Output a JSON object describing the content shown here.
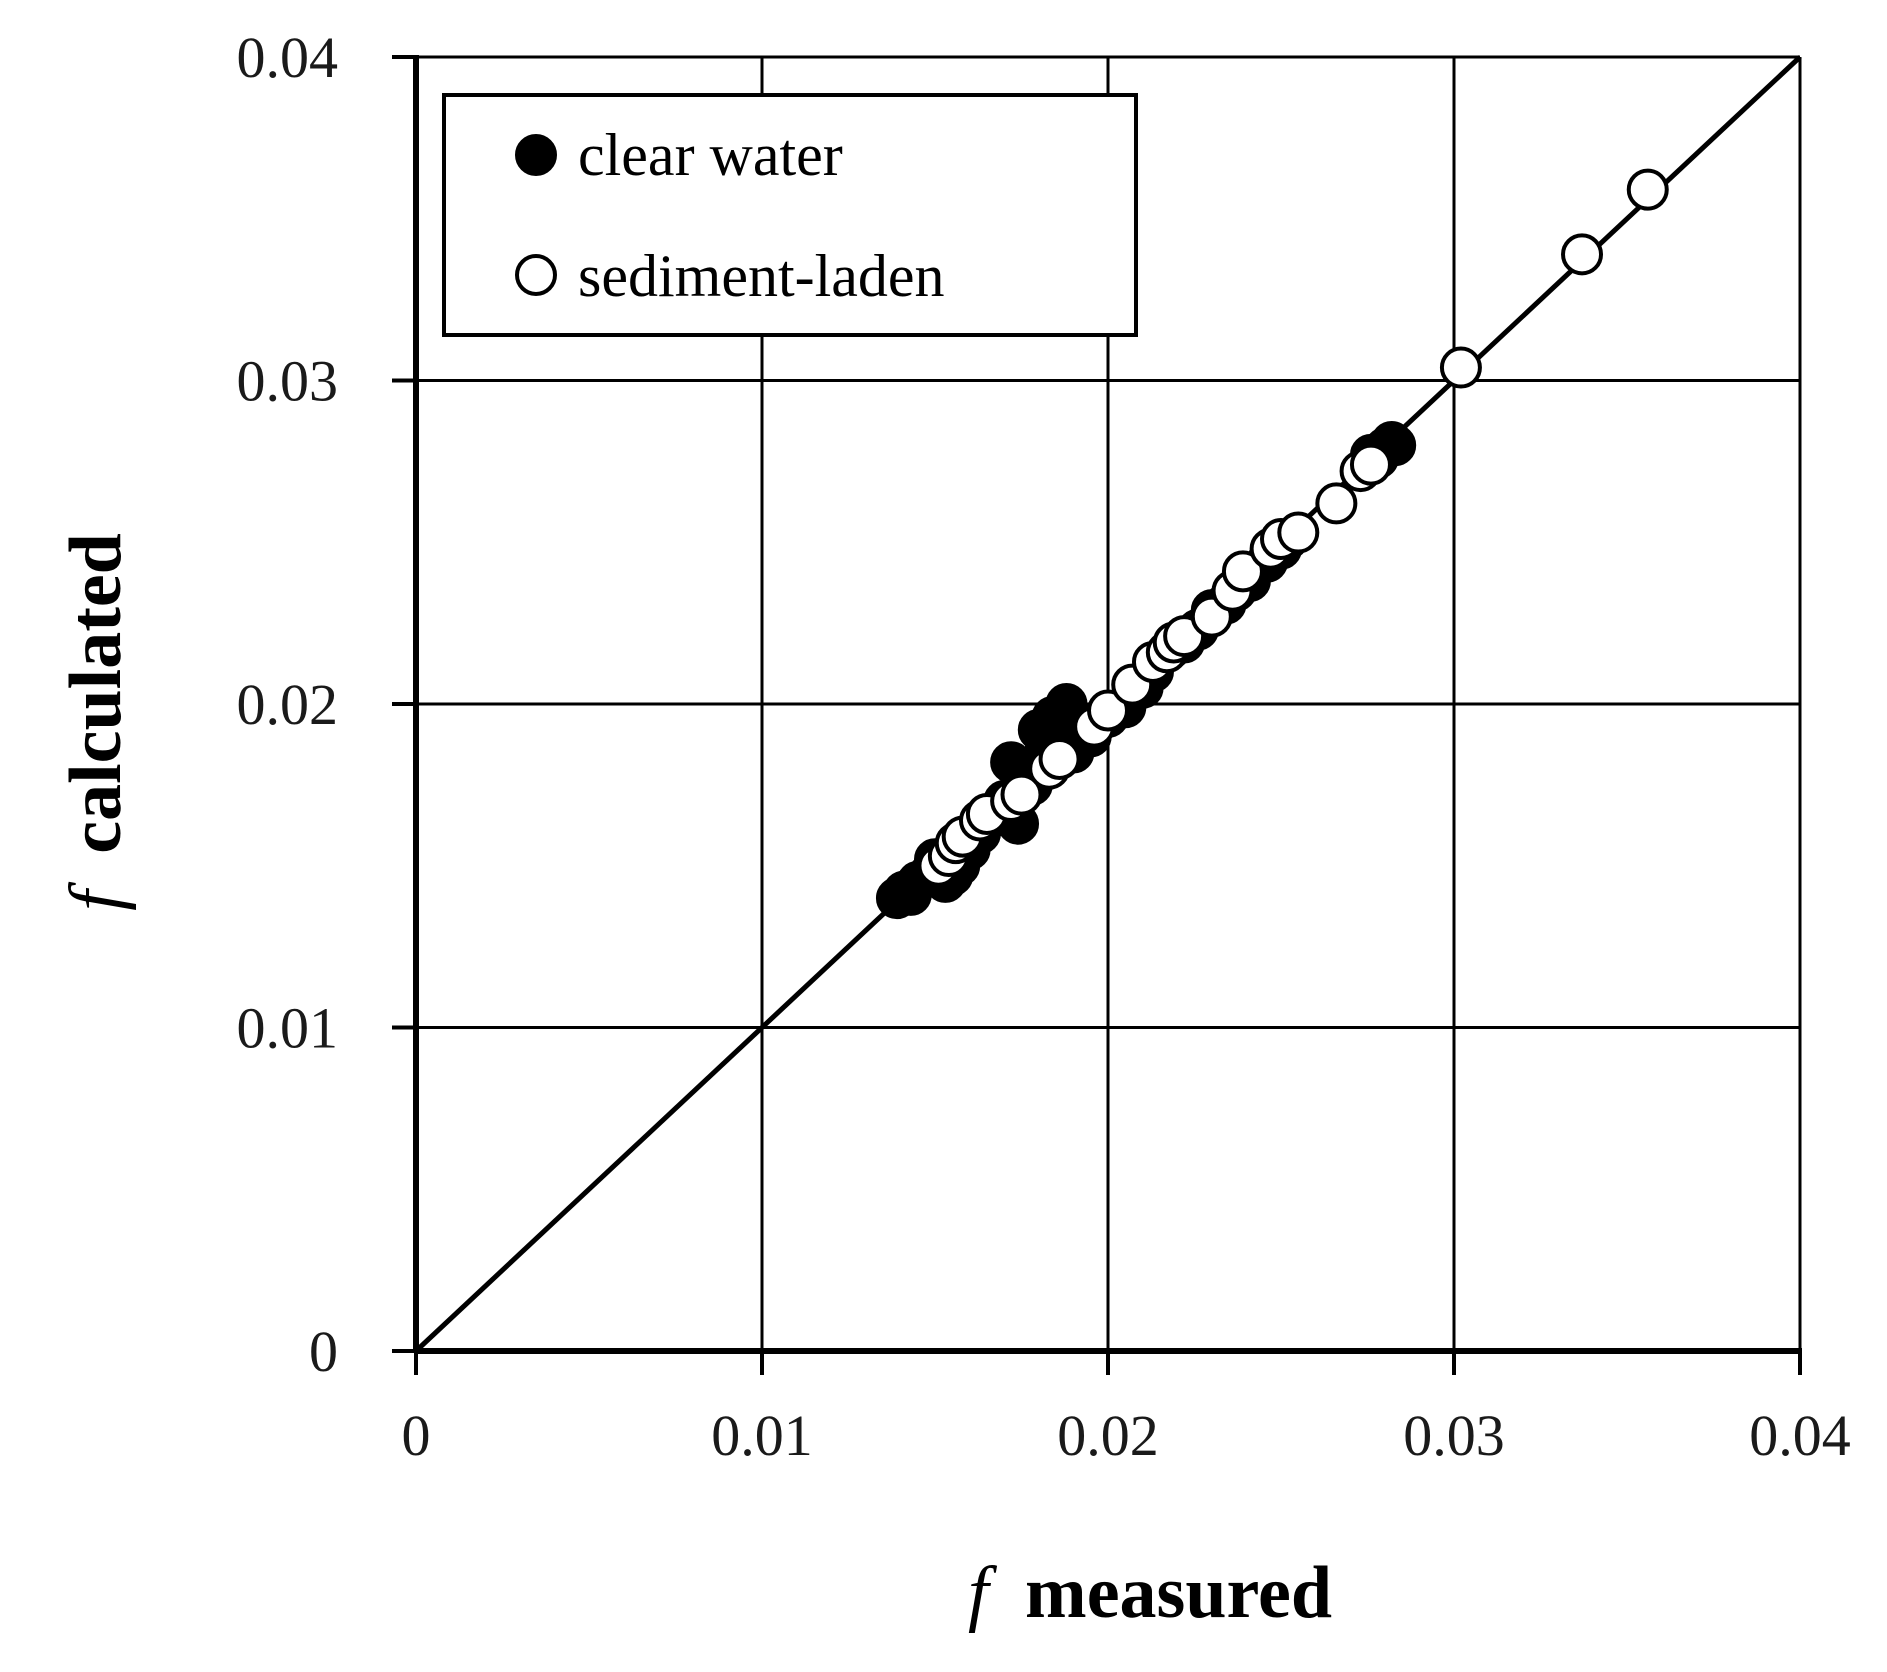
{
  "chart_data": {
    "type": "scatter",
    "xlabel": {
      "symbol": "f",
      "text": "measured"
    },
    "ylabel": {
      "symbol": "f",
      "text": "calculated"
    },
    "xlim": [
      0,
      0.04
    ],
    "ylim": [
      0,
      0.04
    ],
    "x_ticks": [
      0,
      0.01,
      0.02,
      0.03,
      0.04
    ],
    "y_ticks": [
      0,
      0.01,
      0.02,
      0.03,
      0.04
    ],
    "x_tick_labels": [
      "0",
      "0.01",
      "0.02",
      "0.03",
      "0.04"
    ],
    "y_tick_labels": [
      "0",
      "0.01",
      "0.02",
      "0.03",
      "0.04"
    ],
    "grid": true,
    "legend_position": "top-left",
    "reference_line": {
      "from": [
        0,
        0
      ],
      "to": [
        0.04,
        0.04
      ],
      "color": "#000000"
    },
    "series": [
      {
        "name": "clear water",
        "marker": "filled-circle",
        "color": "#000000",
        "points": [
          [
            0.0139,
            0.014
          ],
          [
            0.0141,
            0.0142
          ],
          [
            0.0143,
            0.0141
          ],
          [
            0.0145,
            0.0145
          ],
          [
            0.0148,
            0.0147
          ],
          [
            0.015,
            0.0152
          ],
          [
            0.0153,
            0.0145
          ],
          [
            0.0155,
            0.0147
          ],
          [
            0.0157,
            0.015
          ],
          [
            0.016,
            0.0155
          ],
          [
            0.0163,
            0.016
          ],
          [
            0.0165,
            0.0164
          ],
          [
            0.0168,
            0.0166
          ],
          [
            0.017,
            0.017
          ],
          [
            0.0172,
            0.0182
          ],
          [
            0.0174,
            0.0163
          ],
          [
            0.0176,
            0.0178
          ],
          [
            0.0178,
            0.0175
          ],
          [
            0.018,
            0.0192
          ],
          [
            0.0182,
            0.0186
          ],
          [
            0.0184,
            0.0196
          ],
          [
            0.0186,
            0.0189
          ],
          [
            0.0188,
            0.02
          ],
          [
            0.019,
            0.0185
          ],
          [
            0.0192,
            0.0194
          ],
          [
            0.0195,
            0.019
          ],
          [
            0.02,
            0.0196
          ],
          [
            0.0205,
            0.0199
          ],
          [
            0.021,
            0.0205
          ],
          [
            0.0213,
            0.021
          ],
          [
            0.0218,
            0.0217
          ],
          [
            0.0222,
            0.0219
          ],
          [
            0.0226,
            0.0223
          ],
          [
            0.023,
            0.0229
          ],
          [
            0.0234,
            0.0231
          ],
          [
            0.0237,
            0.0235
          ],
          [
            0.0241,
            0.0238
          ],
          [
            0.0246,
            0.0244
          ],
          [
            0.025,
            0.0248
          ],
          [
            0.0252,
            0.0251
          ],
          [
            0.0276,
            0.0277
          ],
          [
            0.0278,
            0.0276
          ],
          [
            0.028,
            0.0279
          ],
          [
            0.0282,
            0.0281
          ],
          [
            0.0283,
            0.028
          ]
        ]
      },
      {
        "name": "sediment-laden",
        "marker": "open-circle",
        "color": "#000000",
        "points": [
          [
            0.0151,
            0.015
          ],
          [
            0.0154,
            0.0153
          ],
          [
            0.0156,
            0.0157
          ],
          [
            0.0158,
            0.0159
          ],
          [
            0.0163,
            0.0164
          ],
          [
            0.0165,
            0.0166
          ],
          [
            0.0172,
            0.017
          ],
          [
            0.0175,
            0.0172
          ],
          [
            0.0183,
            0.018
          ],
          [
            0.0186,
            0.0183
          ],
          [
            0.0196,
            0.0193
          ],
          [
            0.02,
            0.0198
          ],
          [
            0.0207,
            0.0206
          ],
          [
            0.0213,
            0.0213
          ],
          [
            0.0217,
            0.0216
          ],
          [
            0.0219,
            0.0219
          ],
          [
            0.0222,
            0.0221
          ],
          [
            0.023,
            0.0227
          ],
          [
            0.0236,
            0.0235
          ],
          [
            0.0239,
            0.0241
          ],
          [
            0.0247,
            0.0248
          ],
          [
            0.025,
            0.0251
          ],
          [
            0.0255,
            0.0253
          ],
          [
            0.0266,
            0.0262
          ],
          [
            0.0273,
            0.0272
          ],
          [
            0.0276,
            0.0274
          ],
          [
            0.0302,
            0.0304
          ],
          [
            0.0337,
            0.0339
          ],
          [
            0.0356,
            0.0359
          ]
        ]
      }
    ]
  }
}
